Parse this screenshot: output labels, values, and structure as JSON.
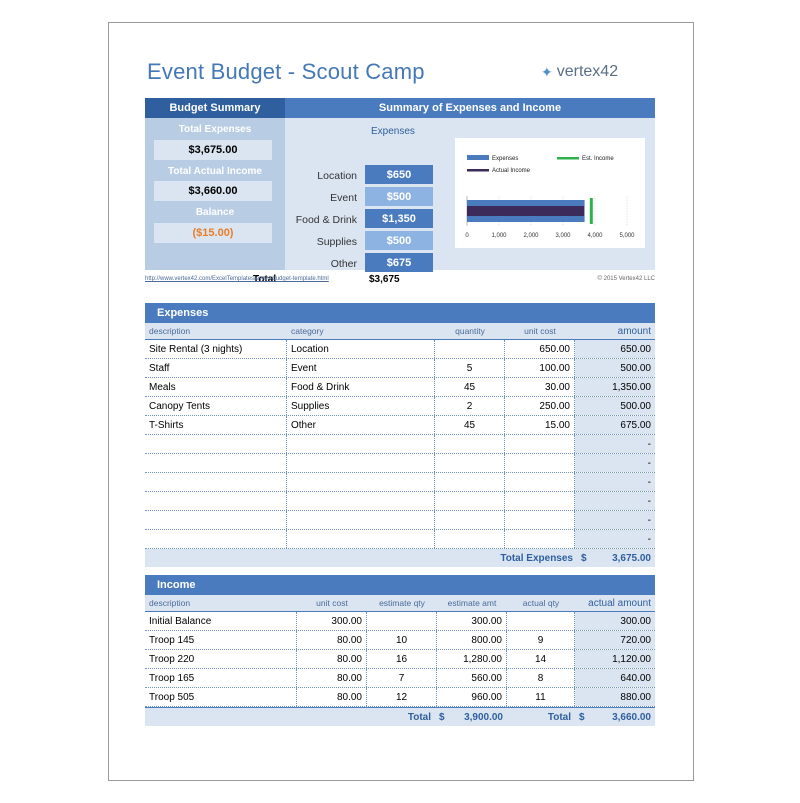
{
  "title": "Event Budget - Scout Camp",
  "logo_text": "vertex42",
  "summary": {
    "left_header": "Budget Summary",
    "right_header": "Summary of Expenses and Income",
    "total_expenses_label": "Total Expenses",
    "total_expenses_value": "$3,675.00",
    "total_income_label": "Total Actual Income",
    "total_income_value": "$3,660.00",
    "balance_label": "Balance",
    "balance_value": "($15.00)",
    "expenses_label": "Expenses",
    "categories": [
      {
        "label": "Location",
        "value": "$650"
      },
      {
        "label": "Event",
        "value": "$500"
      },
      {
        "label": "Food & Drink",
        "value": "$1,350"
      },
      {
        "label": "Supplies",
        "value": "$500"
      },
      {
        "label": "Other",
        "value": "$675"
      }
    ],
    "total_label": "Total",
    "total_value": "$3,675"
  },
  "chart_data": {
    "type": "bar",
    "orientation": "horizontal",
    "series": [
      {
        "name": "Expenses",
        "values": [
          3675
        ],
        "color": "#4b7bbf"
      },
      {
        "name": "Est. Income",
        "values": [
          3900
        ],
        "color": "#2db34a"
      },
      {
        "name": "Actual Income",
        "values": [
          3660
        ],
        "color": "#3b2a5a"
      }
    ],
    "xlim": [
      0,
      5000
    ],
    "ticks": [
      "0",
      "1,000",
      "2,000",
      "3,000",
      "4,000",
      "5,000"
    ],
    "legend": "top"
  },
  "links": {
    "left": "http://www.vertex42.com/ExcelTemplates/event-budget-template.html",
    "right": "© 2015 Vertex42 LLC"
  },
  "expenses": {
    "header": "Expenses",
    "columns": [
      "description",
      "category",
      "quantity",
      "unit cost",
      "amount"
    ],
    "rows": [
      [
        "Site Rental (3 nights)",
        "Location",
        "",
        "650.00",
        "650.00"
      ],
      [
        "Staff",
        "Event",
        "5",
        "100.00",
        "500.00"
      ],
      [
        "Meals",
        "Food & Drink",
        "45",
        "30.00",
        "1,350.00"
      ],
      [
        "Canopy Tents",
        "Supplies",
        "2",
        "250.00",
        "500.00"
      ],
      [
        "T-Shirts",
        "Other",
        "45",
        "15.00",
        "675.00"
      ],
      [
        "",
        "",
        "",
        "",
        "-"
      ],
      [
        "",
        "",
        "",
        "",
        "-"
      ],
      [
        "",
        "",
        "",
        "",
        "-"
      ],
      [
        "",
        "",
        "",
        "",
        "-"
      ],
      [
        "",
        "",
        "",
        "",
        "-"
      ],
      [
        "",
        "",
        "",
        "",
        "-"
      ]
    ],
    "total_label": "Total Expenses",
    "currency": "$",
    "total_value": "3,675.00"
  },
  "income": {
    "header": "Income",
    "columns": [
      "description",
      "unit cost",
      "estimate qty",
      "estimate amt",
      "actual qty",
      "actual amount"
    ],
    "rows": [
      [
        "Initial Balance",
        "300.00",
        "",
        "300.00",
        "",
        "300.00"
      ],
      [
        "Troop 145",
        "80.00",
        "10",
        "800.00",
        "9",
        "720.00"
      ],
      [
        "Troop 220",
        "80.00",
        "16",
        "1,280.00",
        "14",
        "1,120.00"
      ],
      [
        "Troop 165",
        "80.00",
        "7",
        "560.00",
        "8",
        "640.00"
      ],
      [
        "Troop 505",
        "80.00",
        "12",
        "960.00",
        "11",
        "880.00"
      ]
    ],
    "total_label": "Total",
    "currency": "$",
    "est_total": "3,900.00",
    "actual_total": "3,660.00"
  }
}
